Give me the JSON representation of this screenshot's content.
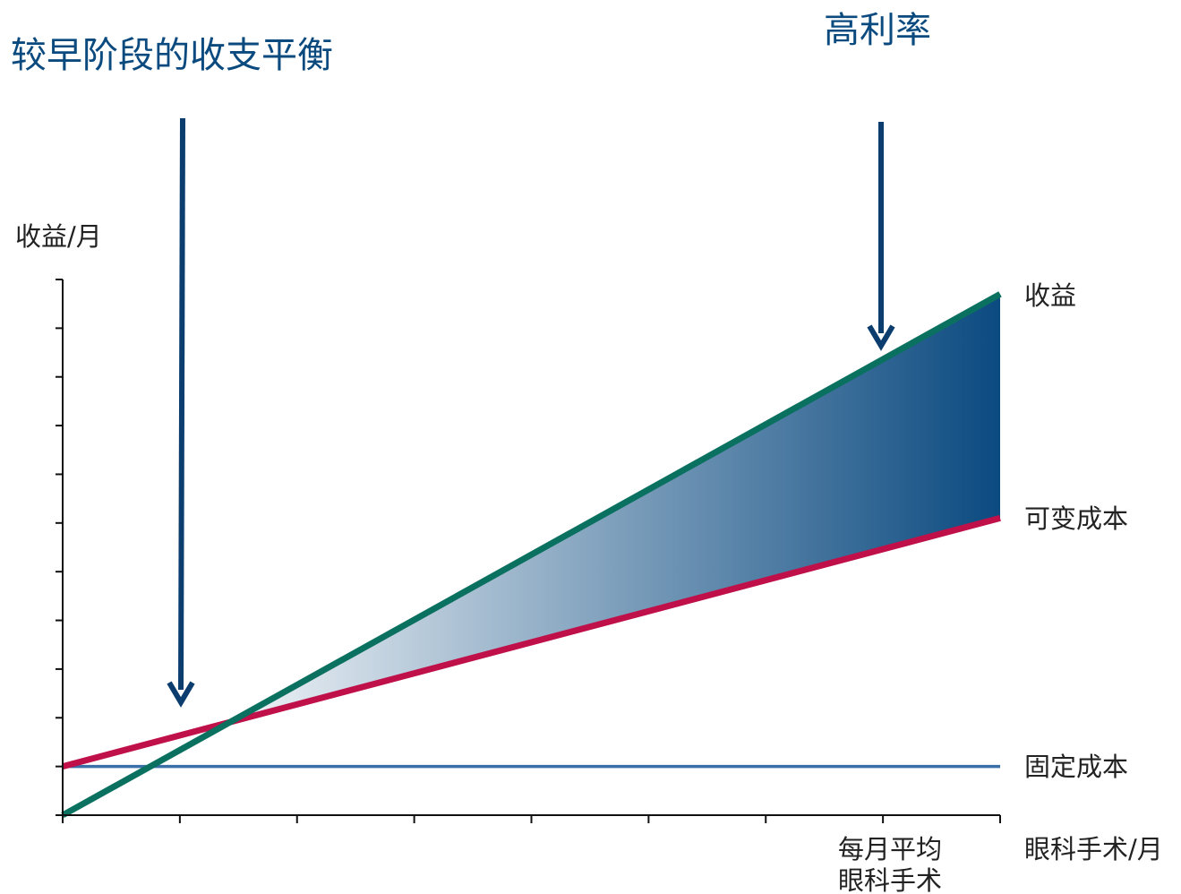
{
  "annotations": {
    "breakeven": "较早阶段的收支平衡",
    "high_profit": "高利率"
  },
  "axes": {
    "ylabel": "收益/月",
    "xlabel": "眼科手术/月",
    "x_marker_label_line1": "每月平均",
    "x_marker_label_line2": "眼科手术"
  },
  "series_labels": {
    "revenue": "收益",
    "variable_cost": "可变成本",
    "fixed_cost": "固定成本"
  },
  "colors": {
    "title": "#0b4a7e",
    "arrow": "#0b3d6e",
    "revenue": "#0a7060",
    "variable_cost": "#c0104a",
    "fixed_cost": "#3a6fa8",
    "profit_fill_dark": "#0b4a80",
    "profit_fill_light": "#ffffff",
    "axis": "#111111"
  },
  "chart_data": {
    "type": "line",
    "x_ticks": 8,
    "y_ticks": 11,
    "x_range": [
      0,
      8
    ],
    "y_range": [
      0,
      11
    ],
    "series": [
      {
        "name": "收益",
        "key": "revenue",
        "x": [
          0,
          8
        ],
        "y": [
          0,
          10.7
        ]
      },
      {
        "name": "可变成本",
        "key": "variable_cost",
        "x": [
          0,
          8
        ],
        "y": [
          1.0,
          6.1
        ]
      },
      {
        "name": "固定成本",
        "key": "fixed_cost",
        "x": [
          0,
          8
        ],
        "y": [
          1.0,
          1.0
        ]
      }
    ],
    "profit_area": "between revenue and variable_cost",
    "grid": false,
    "legend": "inline-right"
  }
}
